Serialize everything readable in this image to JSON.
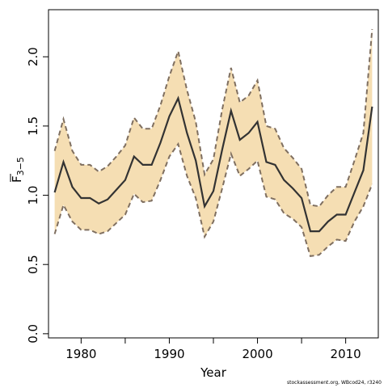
{
  "chart_data": {
    "type": "line",
    "xlabel": "Year",
    "ylabel_main": "F",
    "ylabel_sub": "3−5",
    "xlim": [
      1976.3,
      2013.7
    ],
    "ylim": [
      -0.03,
      2.34
    ],
    "x_ticks": [
      1980,
      1990,
      2000,
      2010
    ],
    "y_ticks": [
      0.0,
      0.5,
      1.0,
      1.5,
      2.0
    ],
    "y_tick_labels": [
      "0.0",
      "0.5",
      "1.0",
      "1.5",
      "2.0"
    ],
    "grid": false,
    "colors": {
      "band": "#f5deb3",
      "line": "#333333",
      "bound": "#7f6f60"
    },
    "x": [
      1977,
      1978,
      1979,
      1980,
      1981,
      1982,
      1983,
      1984,
      1985,
      1986,
      1987,
      1988,
      1989,
      1990,
      1991,
      1992,
      1993,
      1994,
      1995,
      1996,
      1997,
      1998,
      1999,
      2000,
      2001,
      2002,
      2003,
      2004,
      2005,
      2006,
      2007,
      2008,
      2009,
      2010,
      2011,
      2012,
      2013
    ],
    "series": [
      {
        "role": "estimate",
        "values": [
          1.02,
          1.24,
          1.06,
          0.98,
          0.98,
          0.94,
          0.97,
          1.04,
          1.11,
          1.28,
          1.22,
          1.22,
          1.38,
          1.57,
          1.7,
          1.45,
          1.25,
          0.92,
          1.03,
          1.33,
          1.61,
          1.4,
          1.45,
          1.53,
          1.24,
          1.22,
          1.11,
          1.05,
          0.98,
          0.74,
          0.74,
          0.81,
          0.86,
          0.86,
          1.02,
          1.18,
          1.64
        ]
      },
      {
        "role": "upper",
        "values": [
          1.32,
          1.55,
          1.32,
          1.22,
          1.22,
          1.17,
          1.21,
          1.28,
          1.36,
          1.56,
          1.48,
          1.48,
          1.65,
          1.86,
          2.04,
          1.76,
          1.53,
          1.15,
          1.26,
          1.62,
          1.92,
          1.67,
          1.72,
          1.83,
          1.5,
          1.48,
          1.34,
          1.27,
          1.19,
          0.93,
          0.92,
          1.0,
          1.06,
          1.06,
          1.25,
          1.45,
          2.2
        ]
      },
      {
        "role": "lower",
        "values": [
          0.72,
          0.93,
          0.81,
          0.75,
          0.75,
          0.72,
          0.74,
          0.8,
          0.86,
          1.01,
          0.95,
          0.96,
          1.11,
          1.28,
          1.37,
          1.14,
          0.98,
          0.7,
          0.81,
          1.05,
          1.3,
          1.14,
          1.19,
          1.25,
          0.99,
          0.97,
          0.87,
          0.83,
          0.77,
          0.56,
          0.57,
          0.63,
          0.68,
          0.67,
          0.81,
          0.92,
          1.08
        ]
      }
    ]
  },
  "footer": "stockassessment.org, WBcod24, r3240"
}
